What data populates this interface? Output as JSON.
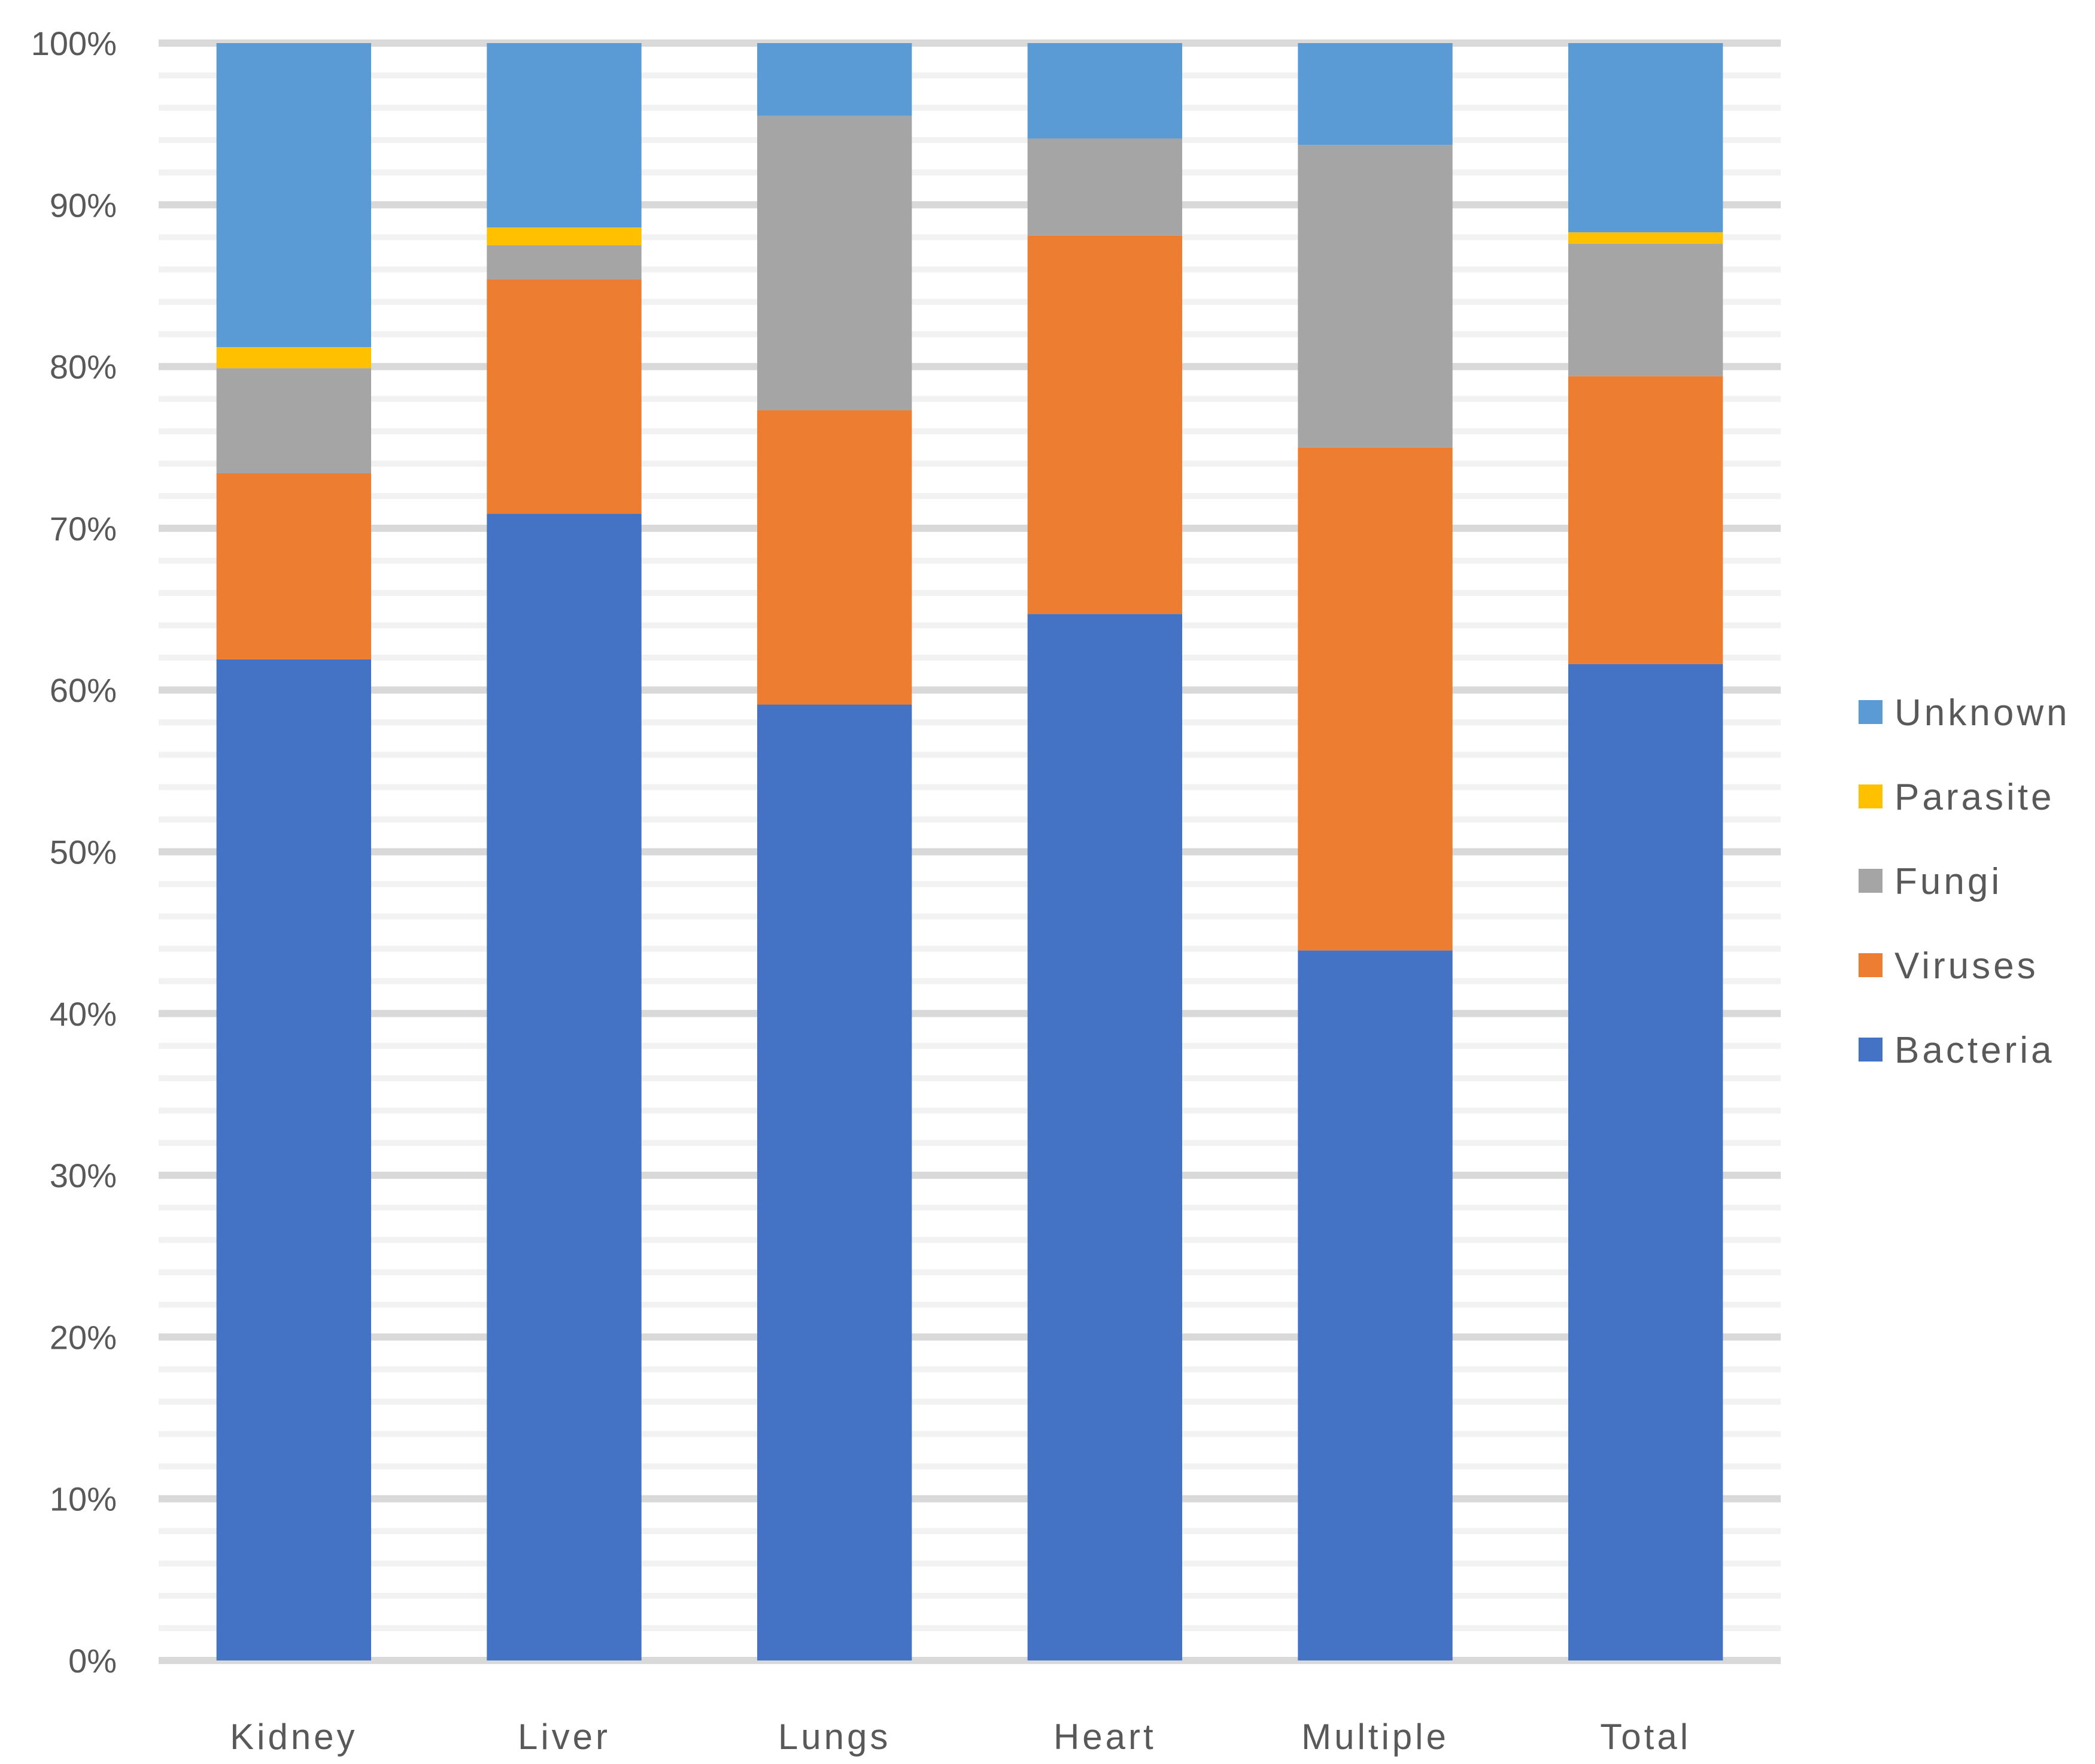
{
  "chart_data": {
    "type": "bar",
    "stacked": "percent",
    "categories": [
      "Kidney",
      "Liver",
      "Lungs",
      "Heart",
      "Multiple",
      "Total"
    ],
    "series": [
      {
        "name": "Bacteria",
        "color": "#4472C4",
        "values": [
          61.9,
          70.9,
          59.1,
          64.7,
          43.9,
          61.6
        ]
      },
      {
        "name": "Viruses",
        "color": "#ED7D31",
        "values": [
          11.5,
          14.5,
          18.2,
          23.4,
          31.1,
          17.8
        ]
      },
      {
        "name": "Fungi",
        "color": "#A5A5A5",
        "values": [
          6.5,
          2.1,
          18.2,
          6.0,
          18.7,
          8.2
        ]
      },
      {
        "name": "Parasite",
        "color": "#FFC000",
        "values": [
          1.3,
          1.1,
          0.0,
          0.0,
          0.0,
          0.7
        ]
      },
      {
        "name": "Unknown",
        "color": "#5B9BD5",
        "values": [
          18.8,
          11.4,
          4.5,
          5.9,
          6.3,
          11.7
        ]
      }
    ],
    "yticks": [
      "0%",
      "10%",
      "20%",
      "30%",
      "40%",
      "50%",
      "60%",
      "70%",
      "80%",
      "90%",
      "100%"
    ],
    "ylim": [
      0,
      100
    ],
    "grid": true,
    "legend_position": "right",
    "legend_order": [
      "Unknown",
      "Parasite",
      "Fungi",
      "Viruses",
      "Bacteria"
    ]
  }
}
